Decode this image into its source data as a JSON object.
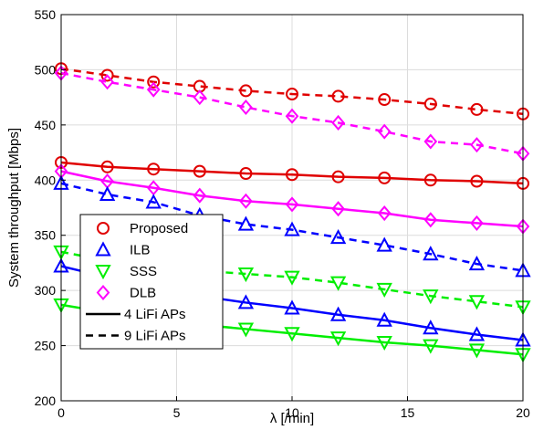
{
  "chart_data": {
    "type": "line",
    "xlabel": "λ [/min]",
    "ylabel": "System throughput [Mbps]",
    "xlim": [
      0,
      20
    ],
    "ylim": [
      200,
      550
    ],
    "xticks": [
      0,
      5,
      10,
      15,
      20
    ],
    "yticks": [
      200,
      250,
      300,
      350,
      400,
      450,
      500,
      550
    ],
    "grid": true,
    "legend_position": "lower-left",
    "x": [
      0,
      2,
      4,
      6,
      8,
      10,
      12,
      14,
      16,
      18,
      20
    ],
    "series": [
      {
        "name": "Proposed",
        "config": "9 LiFi APs",
        "color": "#e00000",
        "marker": "circle",
        "dash": true,
        "values": [
          501,
          495,
          489,
          485,
          481,
          478,
          476,
          473,
          469,
          464,
          460
        ]
      },
      {
        "name": "Proposed",
        "config": "4 LiFi APs",
        "color": "#e00000",
        "marker": "circle",
        "dash": false,
        "values": [
          416,
          412,
          410,
          408,
          406,
          405,
          403,
          402,
          400,
          399,
          397
        ]
      },
      {
        "name": "DLB",
        "config": "9 LiFi APs",
        "color": "#ff00ff",
        "marker": "diamond",
        "dash": true,
        "values": [
          497,
          489,
          482,
          475,
          466,
          458,
          452,
          444,
          435,
          432,
          424
        ]
      },
      {
        "name": "DLB",
        "config": "4 LiFi APs",
        "color": "#ff00ff",
        "marker": "diamond",
        "dash": false,
        "values": [
          408,
          399,
          393,
          386,
          381,
          378,
          374,
          370,
          364,
          361,
          358
        ]
      },
      {
        "name": "ILB",
        "config": "9 LiFi APs",
        "color": "#0000ff",
        "marker": "triangle-up",
        "dash": true,
        "values": [
          397,
          387,
          380,
          368,
          360,
          355,
          348,
          341,
          333,
          324,
          318
        ]
      },
      {
        "name": "ILB",
        "config": "4 LiFi APs",
        "color": "#0000ff",
        "marker": "triangle-up",
        "dash": false,
        "values": [
          322,
          312,
          302,
          295,
          289,
          284,
          278,
          273,
          266,
          260,
          255
        ]
      },
      {
        "name": "SSS",
        "config": "9 LiFi APs",
        "color": "#00ee00",
        "marker": "triangle-down",
        "dash": true,
        "values": [
          335,
          327,
          322,
          318,
          315,
          312,
          307,
          301,
          295,
          290,
          285
        ]
      },
      {
        "name": "SSS",
        "config": "4 LiFi APs",
        "color": "#00ee00",
        "marker": "triangle-down",
        "dash": false,
        "values": [
          287,
          280,
          274,
          269,
          265,
          261,
          257,
          253,
          250,
          246,
          242
        ]
      }
    ],
    "legend": [
      {
        "label": "Proposed",
        "kind": "marker",
        "marker": "circle",
        "color": "#e00000"
      },
      {
        "label": "ILB",
        "kind": "marker",
        "marker": "triangle-up",
        "color": "#0000ff"
      },
      {
        "label": "SSS",
        "kind": "marker",
        "marker": "triangle-down",
        "color": "#00ee00"
      },
      {
        "label": "DLB",
        "kind": "marker",
        "marker": "diamond",
        "color": "#ff00ff"
      },
      {
        "label": "4 LiFi APs",
        "kind": "line",
        "dash": false,
        "color": "#000000"
      },
      {
        "label": "9 LiFi APs",
        "kind": "line",
        "dash": true,
        "color": "#000000"
      }
    ]
  }
}
